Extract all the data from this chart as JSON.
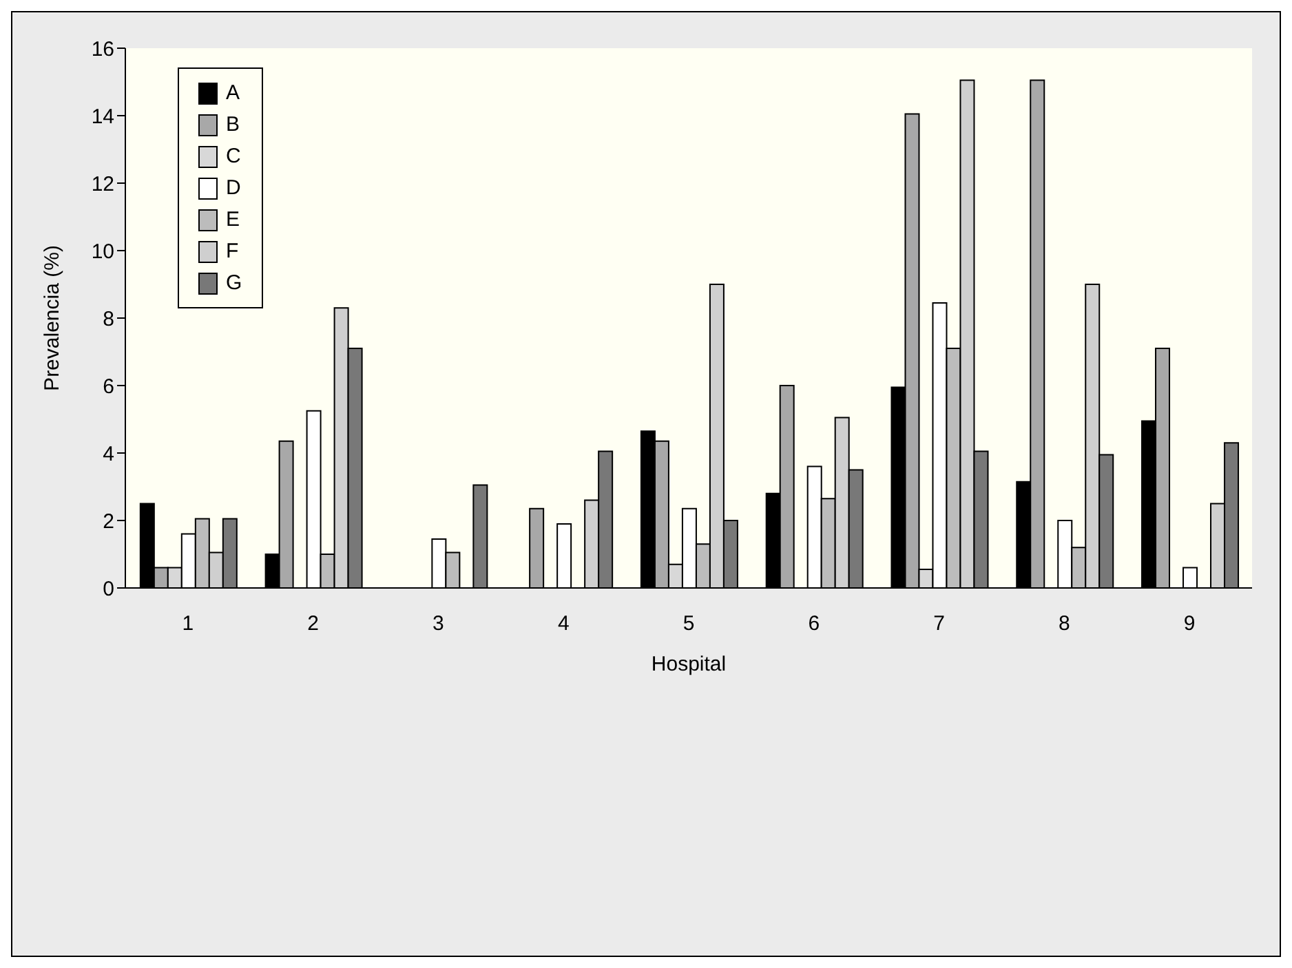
{
  "chart_data": {
    "type": "bar",
    "xlabel": "Hospital",
    "ylabel": "Prevalencia (%)",
    "categories": [
      "1",
      "2",
      "3",
      "4",
      "5",
      "6",
      "7",
      "8",
      "9"
    ],
    "series": [
      {
        "name": "A",
        "color": "#000000",
        "values": [
          2.5,
          1.0,
          null,
          null,
          4.65,
          2.8,
          5.95,
          3.15,
          4.95
        ]
      },
      {
        "name": "B",
        "color": "#a8a8a8",
        "values": [
          0.6,
          4.35,
          null,
          2.35,
          4.35,
          6.0,
          14.05,
          15.05,
          7.1
        ]
      },
      {
        "name": "C",
        "color": "#d8d8d8",
        "values": [
          0.6,
          null,
          null,
          null,
          0.7,
          null,
          0.55,
          null,
          null
        ]
      },
      {
        "name": "D",
        "color": "#ffffff",
        "values": [
          1.6,
          5.25,
          1.45,
          1.9,
          2.35,
          3.6,
          8.45,
          2.0,
          0.6
        ]
      },
      {
        "name": "E",
        "color": "#bcbcbc",
        "values": [
          2.05,
          1.0,
          1.05,
          null,
          1.3,
          2.65,
          7.1,
          1.2,
          null
        ]
      },
      {
        "name": "F",
        "color": "#cfcfcf",
        "values": [
          1.05,
          8.3,
          null,
          2.6,
          9.0,
          5.05,
          15.05,
          9.0,
          2.5
        ]
      },
      {
        "name": "G",
        "color": "#787878",
        "values": [
          2.05,
          7.1,
          3.05,
          4.05,
          2.0,
          3.5,
          4.05,
          3.95,
          4.3
        ]
      }
    ],
    "ylim": [
      0,
      16
    ],
    "yticks": [
      0,
      2,
      4,
      6,
      8,
      10,
      12,
      14,
      16
    ],
    "legend": "top left"
  }
}
